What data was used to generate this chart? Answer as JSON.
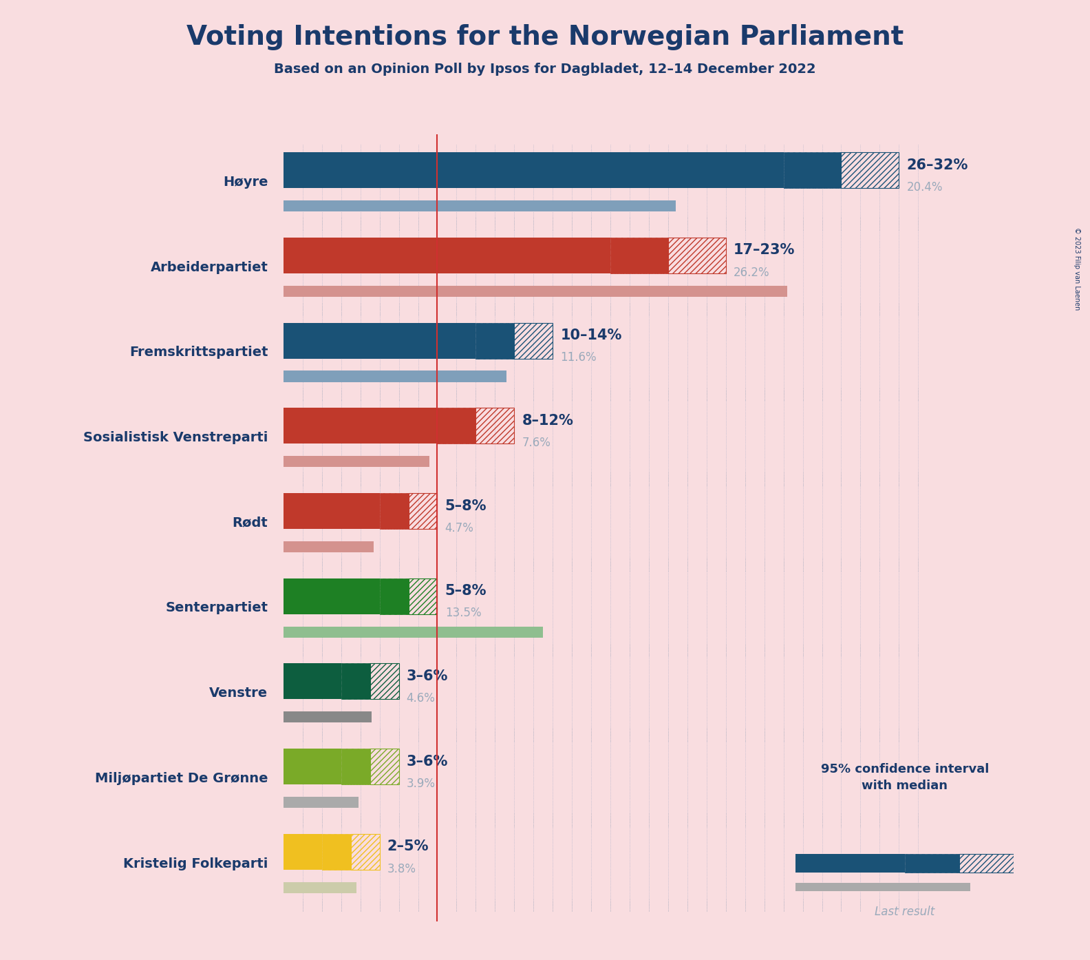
{
  "title": "Voting Intentions for the Norwegian Parliament",
  "subtitle": "Based on an Opinion Poll by Ipsos for Dagbladet, 12–14 December 2022",
  "copyright": "© 2023 Filip van Laenen",
  "background_color": "#f9dde0",
  "parties": [
    {
      "name": "Høyre",
      "low": 26,
      "high": 32,
      "median": 29,
      "last": 20.4,
      "color": "#1a5276",
      "last_color": "#7f9fba"
    },
    {
      "name": "Arbeiderpartiet",
      "low": 17,
      "high": 23,
      "median": 20,
      "last": 26.2,
      "color": "#c0392b",
      "last_color": "#d4928e"
    },
    {
      "name": "Fremskrittspartiet",
      "low": 10,
      "high": 14,
      "median": 12,
      "last": 11.6,
      "color": "#1a5276",
      "last_color": "#7f9fba"
    },
    {
      "name": "Sosialistisk Venstreparti",
      "low": 8,
      "high": 12,
      "median": 10,
      "last": 7.6,
      "color": "#c0392b",
      "last_color": "#d4928e"
    },
    {
      "name": "Rødt",
      "low": 5,
      "high": 8,
      "median": 6,
      "last": 4.7,
      "color": "#c0392b",
      "last_color": "#d4928e"
    },
    {
      "name": "Senterpartiet",
      "low": 5,
      "high": 8,
      "median": 6,
      "last": 13.5,
      "color": "#1e8024",
      "last_color": "#8fbe8f"
    },
    {
      "name": "Venstre",
      "low": 3,
      "high": 6,
      "median": 4,
      "last": 4.6,
      "color": "#0d5e3f",
      "last_color": "#888888"
    },
    {
      "name": "Miljøpartiet De Grønne",
      "low": 3,
      "high": 6,
      "median": 4,
      "last": 3.9,
      "color": "#7aaa28",
      "last_color": "#aaaaaa"
    },
    {
      "name": "Kristelig Folkeparti",
      "low": 2,
      "high": 5,
      "median": 3,
      "last": 3.8,
      "color": "#f0c020",
      "last_color": "#ccccaa"
    }
  ],
  "label_range": [
    "26–32%",
    "17–23%",
    "10–14%",
    "8–12%",
    "5–8%",
    "5–8%",
    "3–6%",
    "3–6%",
    "2–5%"
  ],
  "label_last": [
    "20.4%",
    "26.2%",
    "11.6%",
    "7.6%",
    "4.7%",
    "13.5%",
    "4.6%",
    "3.9%",
    "3.8%"
  ],
  "red_line_x": 8.0,
  "xlim": [
    0,
    34
  ],
  "title_color": "#1a3a6b",
  "label_name_color": "#1a3a6b",
  "label_range_color": "#1a3a6b",
  "label_last_color": "#9aaabb",
  "dot_line_color": "#7090b8",
  "dot_line_color2": "#8090a0"
}
